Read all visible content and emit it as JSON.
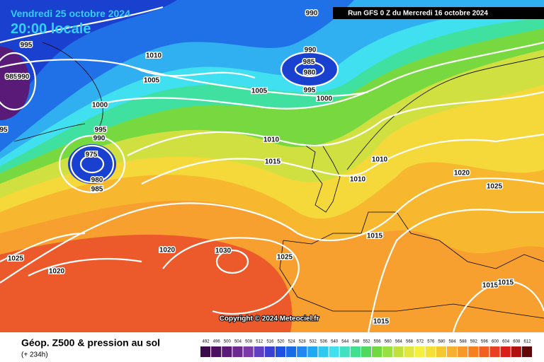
{
  "header": {
    "date": "Vendredi 25 octobre 2024",
    "time": "20:00 locale",
    "run": "Run GFS 0 Z du Mercredi 16 octobre 2024"
  },
  "copyright": "Copyright © 2024 Meteociel.fr",
  "footer": {
    "title": "Géop. Z500 & pression au sol",
    "lead": "(+ 234h)"
  },
  "isobars": [
    "990",
    "995",
    "985",
    "990",
    "95",
    "1010",
    "1005",
    "1000",
    "995",
    "990",
    "975",
    "980",
    "985",
    "990",
    "985",
    "980",
    "995",
    "1000",
    "1005",
    "1010",
    "1015",
    "1010",
    "1010",
    "1020",
    "1025",
    "1015",
    "1020",
    "1030",
    "1025",
    "1025",
    "1020",
    "1015",
    "1015",
    "1015"
  ],
  "legend": {
    "values": [
      492,
      496,
      500,
      504,
      508,
      512,
      516,
      520,
      524,
      528,
      532,
      536,
      540,
      544,
      548,
      552,
      556,
      560,
      564,
      568,
      572,
      576,
      580,
      584,
      588,
      592,
      596,
      600,
      604,
      608,
      612
    ],
    "colors": [
      "#3a0a4a",
      "#4a1060",
      "#5a1a78",
      "#6a2a90",
      "#7a3aa8",
      "#6040c0",
      "#3a40d0",
      "#2050e0",
      "#1a6ae8",
      "#2088f0",
      "#20a8f0",
      "#30c8f0",
      "#40e0f0",
      "#40e0c0",
      "#40e090",
      "#50d860",
      "#70d840",
      "#98e040",
      "#c0e040",
      "#e0e840",
      "#f5f040",
      "#f5e03a",
      "#f5c830",
      "#f7b030",
      "#f79828",
      "#f58020",
      "#f06020",
      "#e84020",
      "#d82018",
      "#b01010",
      "#600808"
    ]
  }
}
